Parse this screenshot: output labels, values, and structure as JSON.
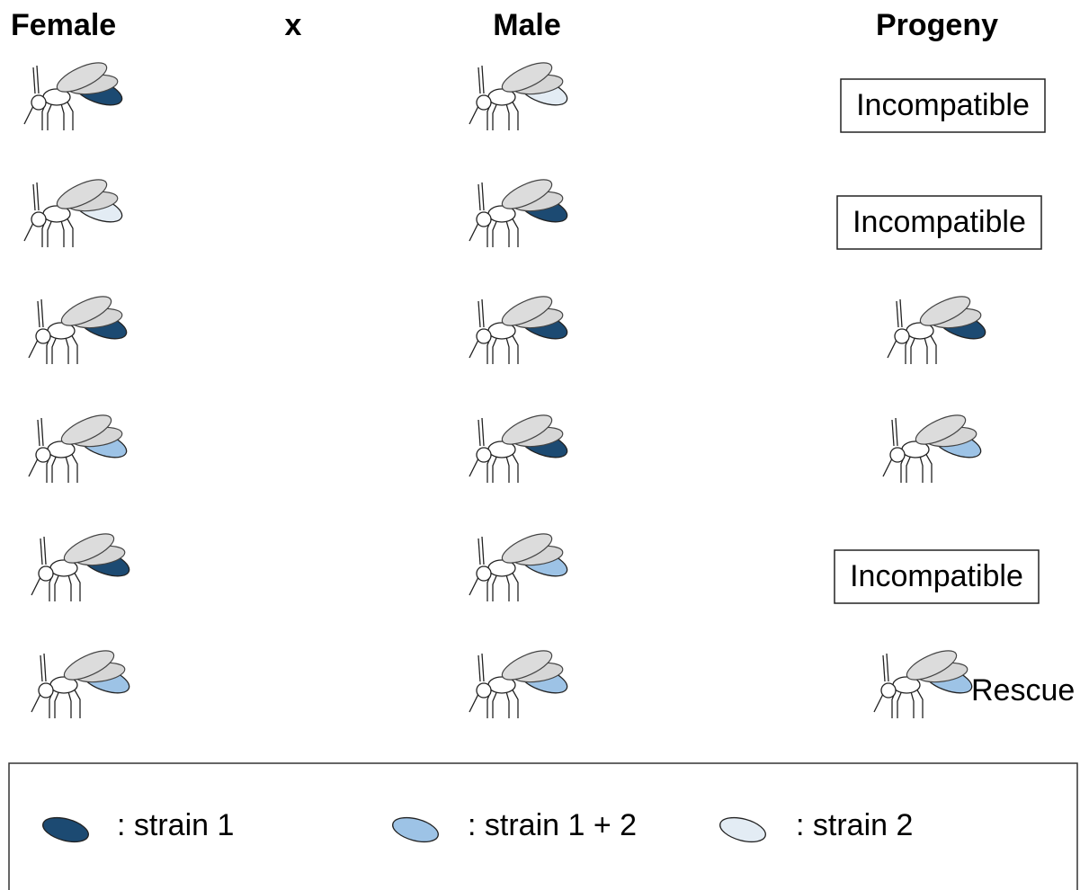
{
  "header": {
    "female": "Female",
    "cross": "x",
    "male": "Male",
    "progeny": "Progeny"
  },
  "rows": [
    {
      "female": {
        "color": "#1c4a72"
      },
      "male": {
        "color": "#e3ecf4"
      },
      "progeny": {
        "label": "Incompatible"
      }
    },
    {
      "female": {
        "color": "#e3ecf4"
      },
      "male": {
        "color": "#1c4a72"
      },
      "progeny": {
        "label": "Incompatible"
      }
    },
    {
      "female": {
        "color": "#1c4a72"
      },
      "male": {
        "color": "#1c4a72"
      },
      "progeny": {
        "color": "#1c4a72"
      }
    },
    {
      "female": {
        "color": "#9dc3e6"
      },
      "male": {
        "color": "#1c4a72"
      },
      "progeny": {
        "color": "#9dc3e6"
      }
    },
    {
      "female": {
        "color": "#1c4a72"
      },
      "male": {
        "color": "#9dc3e6"
      },
      "progeny": {
        "label": "Incompatible"
      }
    },
    {
      "female": {
        "color": "#9dc3e6"
      },
      "male": {
        "color": "#9dc3e6"
      },
      "progeny": {
        "color": "#9dc3e6",
        "label": "Rescue"
      }
    }
  ],
  "legend": [
    {
      "color": "#1c4a72",
      "label": ": strain 1"
    },
    {
      "color": "#9dc3e6",
      "label": ": strain 1 + 2"
    },
    {
      "color": "#e3ecf4",
      "label": ": strain 2"
    }
  ]
}
